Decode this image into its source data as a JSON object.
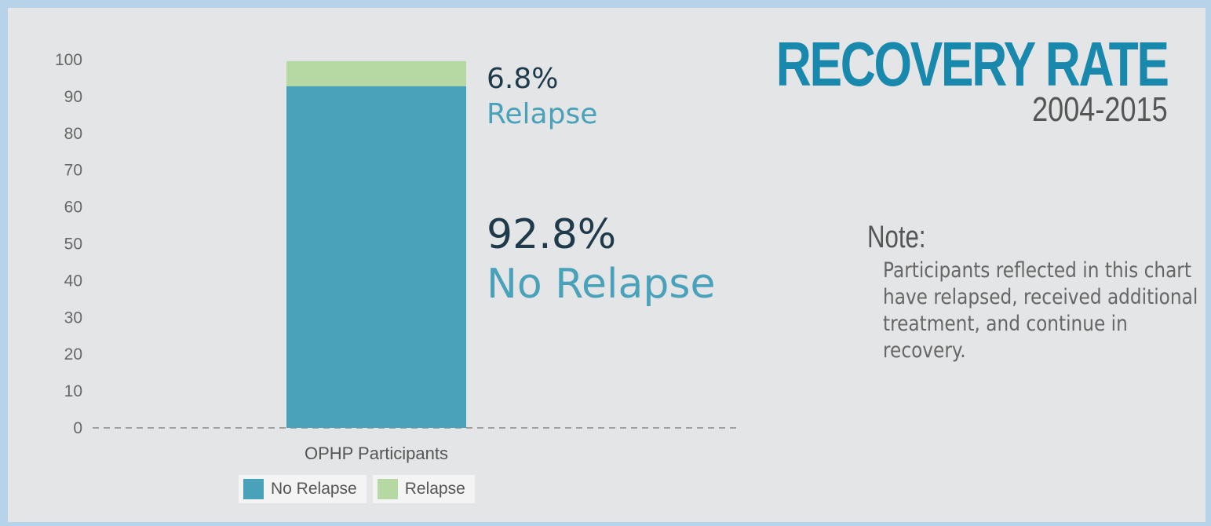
{
  "title": "RECOVERY RATE",
  "subtitle": "2004-2015",
  "note": {
    "heading": "Note:",
    "text": "Participants reflected in this chart have relapsed, received additional treatment, and continue in recovery."
  },
  "bar_labels": {
    "relapse_pct": "6.8%",
    "relapse_label": "Relapse",
    "no_relapse_pct": "92.8%",
    "no_relapse_label": "No Relapse"
  },
  "legend": [
    {
      "label": "No Relapse",
      "color": "#4aa2ba"
    },
    {
      "label": "Relapse",
      "color": "#b6d9a4"
    }
  ],
  "chart_data": {
    "type": "bar",
    "stacked": true,
    "categories": [
      "OPHP Participants"
    ],
    "series": [
      {
        "name": "No Relapse",
        "values": [
          92.8
        ],
        "color": "#4aa2ba"
      },
      {
        "name": "Relapse",
        "values": [
          6.8
        ],
        "color": "#b6d9a4"
      }
    ],
    "yticks": [
      0,
      10,
      20,
      30,
      40,
      50,
      60,
      70,
      80,
      90,
      100
    ],
    "ylim": [
      0,
      100
    ],
    "grid": false,
    "legend_position": "bottom"
  }
}
